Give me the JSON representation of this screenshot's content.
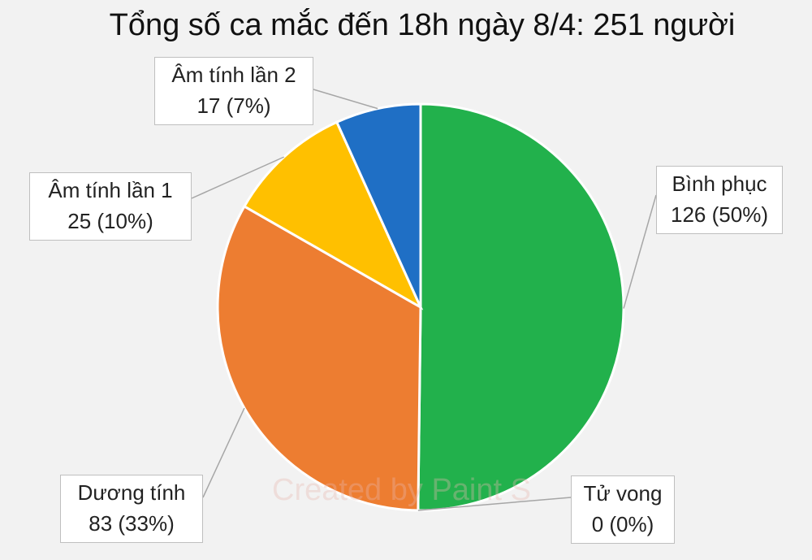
{
  "chart_data": {
    "type": "pie",
    "title": "Tổng số ca mắc đến 18h ngày 8/4: 251 người",
    "slices": [
      {
        "name": "Bình phục",
        "value": 126,
        "percent_label": "126 (50%)",
        "color": "#22b14c"
      },
      {
        "name": "Tử vong",
        "value": 0,
        "percent_label": "0 (0%)",
        "color": "#5b9bd5"
      },
      {
        "name": "Dương tính",
        "value": 83,
        "percent_label": "83 (33%)",
        "color": "#ed7d31"
      },
      {
        "name": "Âm tính lần 1",
        "value": 25,
        "percent_label": "25 (10%)",
        "color": "#ffc000"
      },
      {
        "name": "Âm tính lần 2",
        "value": 17,
        "percent_label": "17 (7%)",
        "color": "#1f6fc5"
      }
    ]
  },
  "watermark": "Created by Paint S"
}
